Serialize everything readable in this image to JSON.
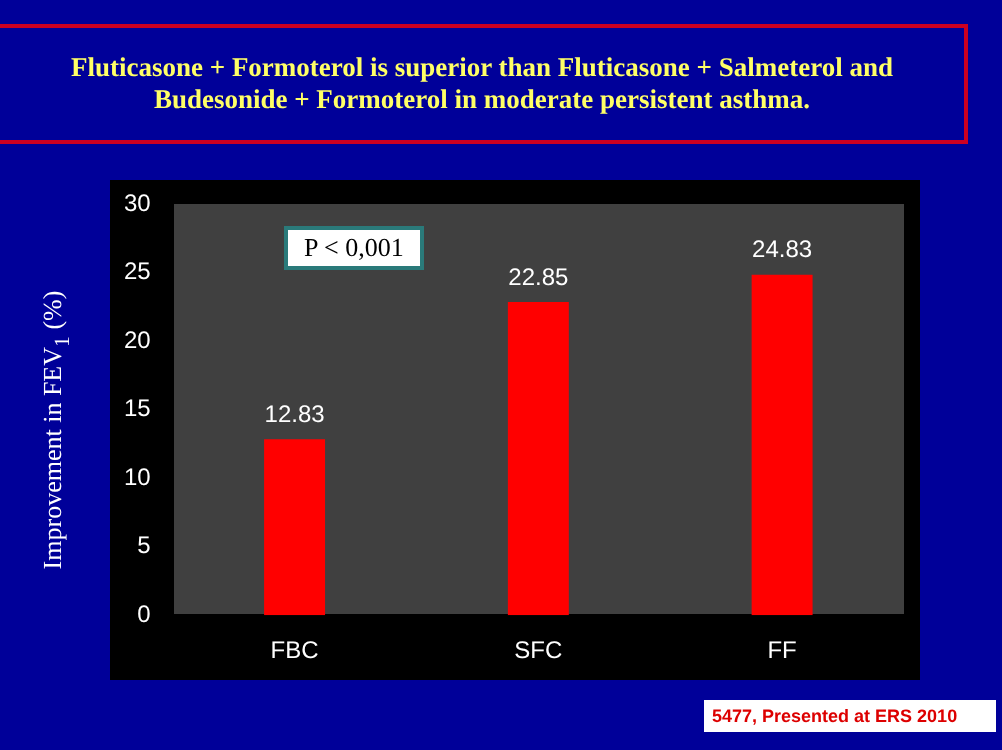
{
  "chart_data": {
    "type": "bar",
    "title": "Fluticasone + Formoterol is superior than Fluticasone + Salmeterol  and Budesonide + Formoterol in moderate persistent asthma.",
    "ylabel": "Improvement in FEV$_{1}$ (%)",
    "categories": [
      "FBC",
      "SFC",
      "FF"
    ],
    "values": [
      12.83,
      22.85,
      24.83
    ],
    "color": "#ff0000",
    "ylim": [
      0,
      30
    ],
    "yticks": [
      0,
      5,
      10,
      15,
      20,
      25,
      30
    ],
    "grid": false,
    "legend": false,
    "data_labels": true,
    "annotations": [
      "P < 0,001",
      "5477, Presented at ERS 2010"
    ]
  }
}
